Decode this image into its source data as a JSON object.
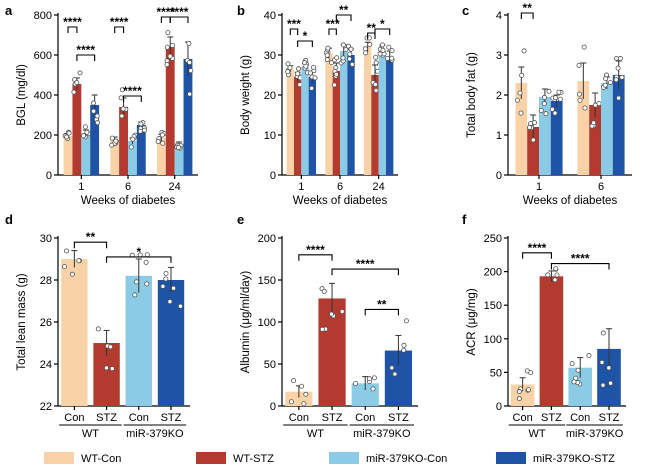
{
  "legend": {
    "items": [
      {
        "label": "WT-Con",
        "color": "#f9d3a7"
      },
      {
        "label": "WT-STZ",
        "color": "#b23a2e"
      },
      {
        "label": "miR-379KO-Con",
        "color": "#8ccbe6"
      },
      {
        "label": "miR-379KO-STZ",
        "color": "#1f53a6"
      }
    ]
  },
  "chart_data": [
    {
      "panel": "a",
      "type": "bar",
      "ylabel": "BGL (mg/dl)",
      "xlabel": "Weeks of diabetes",
      "ylim": [
        0,
        800
      ],
      "yticks": [
        0,
        200,
        400,
        600,
        800
      ],
      "categories": [
        "1",
        "6",
        "24"
      ],
      "series": [
        {
          "name": "WT-Con",
          "values": [
            195,
            175,
            185
          ],
          "err": [
            12,
            15,
            18
          ]
        },
        {
          "name": "WT-STZ",
          "values": [
            455,
            340,
            640
          ],
          "err": [
            30,
            45,
            50
          ]
        },
        {
          "name": "miR-379KO-Con",
          "values": [
            210,
            170,
            155
          ],
          "err": [
            15,
            15,
            10
          ]
        },
        {
          "name": "miR-379KO-STZ",
          "values": [
            350,
            250,
            580
          ],
          "err": [
            50,
            15,
            85
          ]
        }
      ],
      "significance": [
        "****",
        "****",
        "****",
        "****",
        "****",
        "****"
      ]
    },
    {
      "panel": "b",
      "type": "bar",
      "ylabel": "Body weight (g)",
      "xlabel": "Weeks of diabetes",
      "ylim": [
        0,
        40
      ],
      "yticks": [
        0,
        10,
        20,
        30,
        40
      ],
      "categories": [
        "1",
        "6",
        "24"
      ],
      "series": [
        {
          "name": "WT-Con",
          "values": [
            26.5,
            30.5,
            32
          ],
          "err": [
            0.8,
            1.2,
            1.2
          ]
        },
        {
          "name": "WT-STZ",
          "values": [
            24.5,
            26,
            25
          ],
          "err": [
            1.2,
            2,
            2.5
          ]
        },
        {
          "name": "miR-379KO-Con",
          "values": [
            27,
            31,
            31
          ],
          "err": [
            0.8,
            1.5,
            1.5
          ]
        },
        {
          "name": "miR-379KO-STZ",
          "values": [
            24.5,
            30,
            29.5
          ],
          "err": [
            1.5,
            1.5,
            1.5
          ]
        }
      ],
      "significance": [
        "***",
        "*",
        "***",
        "**",
        "**",
        "*"
      ]
    },
    {
      "panel": "c",
      "type": "bar",
      "ylabel": "Total body fat (g)",
      "xlabel": "Weeks of diabetes",
      "ylim": [
        0,
        4
      ],
      "yticks": [
        0,
        1,
        2,
        3,
        4
      ],
      "categories": [
        "1",
        "6"
      ],
      "series": [
        {
          "name": "WT-Con",
          "values": [
            2.3,
            2.35
          ],
          "err": [
            0.4,
            0.45
          ]
        },
        {
          "name": "WT-STZ",
          "values": [
            1.2,
            1.75
          ],
          "err": [
            0.3,
            0.3
          ]
        },
        {
          "name": "miR-379KO-Con",
          "values": [
            1.95,
            2.3
          ],
          "err": [
            0.2,
            0.15
          ]
        },
        {
          "name": "miR-379KO-STZ",
          "values": [
            1.85,
            2.5
          ],
          "err": [
            0.15,
            0.35
          ]
        }
      ],
      "significance": [
        "**"
      ]
    },
    {
      "panel": "d",
      "type": "bar",
      "ylabel": "Total lean mass (g)",
      "ylim": [
        22,
        30
      ],
      "yticks": [
        22,
        24,
        26,
        28,
        30
      ],
      "categories": [
        "Con",
        "STZ",
        "Con",
        "STZ"
      ],
      "groups": [
        "WT",
        "miR-379KO"
      ],
      "values": [
        29,
        25,
        28.2,
        28
      ],
      "err": [
        0.4,
        0.6,
        0.8,
        0.6
      ],
      "significance": [
        "**",
        "*"
      ]
    },
    {
      "panel": "e",
      "type": "bar",
      "ylabel": "Albumin (μg/ml/day)",
      "ylim": [
        0,
        200
      ],
      "yticks": [
        0,
        50,
        100,
        150,
        200
      ],
      "categories": [
        "Con",
        "STZ",
        "Con",
        "STZ"
      ],
      "groups": [
        "WT",
        "miR-379KO"
      ],
      "values": [
        17,
        128,
        27,
        66
      ],
      "err": [
        7,
        18,
        8,
        18
      ],
      "significance": [
        "****",
        "****",
        "**"
      ]
    },
    {
      "panel": "f",
      "type": "bar",
      "ylabel": "ACR (μg/mg)",
      "ylim": [
        0,
        250
      ],
      "yticks": [
        0,
        50,
        100,
        150,
        200,
        250
      ],
      "categories": [
        "Con",
        "STZ",
        "Con",
        "STZ"
      ],
      "groups": [
        "WT",
        "miR-379KO"
      ],
      "values": [
        32,
        193,
        57,
        85
      ],
      "err": [
        10,
        8,
        15,
        30
      ],
      "significance": [
        "****",
        "****"
      ]
    }
  ]
}
